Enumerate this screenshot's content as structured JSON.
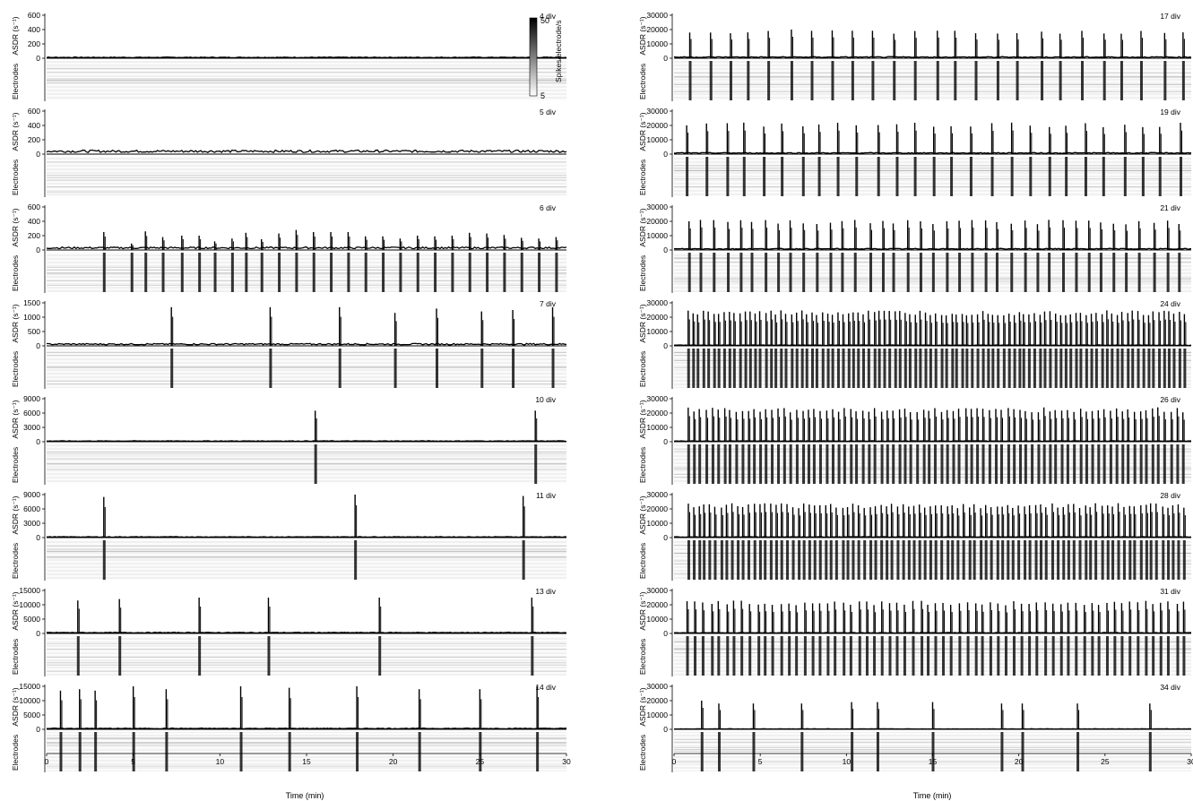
{
  "chart_data": {
    "type": "line",
    "description_axis": {
      "x_label": "Time (min)",
      "x_ticks": [
        "0",
        "5",
        "10",
        "15",
        "20",
        "25",
        "30"
      ],
      "x_range": [
        0,
        30
      ]
    },
    "colorbar": {
      "label": "Spikes/electrode/s",
      "max_label": "50",
      "min_label": "5"
    },
    "y_label_top": "ASDR (s⁻¹)",
    "y_label_bottom": "Electrodes",
    "panels": [
      {
        "label": "4 div",
        "column": "left",
        "ymax": 600,
        "ticks": [
          "600",
          "400",
          "200",
          "0"
        ],
        "baseline": 12,
        "bursts": []
      },
      {
        "label": "5 div",
        "column": "left",
        "ymax": 600,
        "ticks": [
          "600",
          "400",
          "200",
          "0"
        ],
        "baseline": 40,
        "bursts": []
      },
      {
        "label": "6 div",
        "column": "left",
        "ymax": 600,
        "ticks": [
          "600",
          "400",
          "200",
          "0"
        ],
        "baseline": 30,
        "bursts": [
          {
            "t": 3.3,
            "v": 250
          },
          {
            "t": 4.9,
            "v": 90
          },
          {
            "t": 5.7,
            "v": 260
          },
          {
            "t": 6.7,
            "v": 180
          },
          {
            "t": 7.8,
            "v": 200
          },
          {
            "t": 8.8,
            "v": 200
          },
          {
            "t": 9.7,
            "v": 120
          },
          {
            "t": 10.7,
            "v": 160
          },
          {
            "t": 11.5,
            "v": 240
          },
          {
            "t": 12.4,
            "v": 150
          },
          {
            "t": 13.4,
            "v": 230
          },
          {
            "t": 14.4,
            "v": 280
          },
          {
            "t": 15.4,
            "v": 250
          },
          {
            "t": 16.4,
            "v": 250
          },
          {
            "t": 17.4,
            "v": 250
          },
          {
            "t": 18.4,
            "v": 190
          },
          {
            "t": 19.4,
            "v": 190
          },
          {
            "t": 20.4,
            "v": 160
          },
          {
            "t": 21.4,
            "v": 200
          },
          {
            "t": 22.4,
            "v": 190
          },
          {
            "t": 23.4,
            "v": 200
          },
          {
            "t": 24.4,
            "v": 240
          },
          {
            "t": 25.4,
            "v": 230
          },
          {
            "t": 26.4,
            "v": 210
          },
          {
            "t": 27.4,
            "v": 170
          },
          {
            "t": 28.4,
            "v": 160
          },
          {
            "t": 29.4,
            "v": 180
          }
        ]
      },
      {
        "label": "7 div",
        "column": "left",
        "ymax": 1500,
        "ticks": [
          "1500",
          "1000",
          "500",
          "0"
        ],
        "baseline": 60,
        "bursts": [
          {
            "t": 7.2,
            "v": 1350
          },
          {
            "t": 12.9,
            "v": 1350
          },
          {
            "t": 16.9,
            "v": 1350
          },
          {
            "t": 20.1,
            "v": 1150
          },
          {
            "t": 22.5,
            "v": 1300
          },
          {
            "t": 25.1,
            "v": 1200
          },
          {
            "t": 26.9,
            "v": 1250
          },
          {
            "t": 29.2,
            "v": 1350
          }
        ]
      },
      {
        "label": "10 div",
        "column": "left",
        "ymax": 9000,
        "ticks": [
          "9000",
          "6000",
          "3000",
          "0"
        ],
        "baseline": 150,
        "bursts": [
          {
            "t": 15.5,
            "v": 6500
          },
          {
            "t": 28.2,
            "v": 6500
          }
        ]
      },
      {
        "label": "11 div",
        "column": "left",
        "ymax": 9000,
        "ticks": [
          "9000",
          "6000",
          "3000",
          "0"
        ],
        "baseline": 150,
        "bursts": [
          {
            "t": 3.3,
            "v": 8500
          },
          {
            "t": 17.8,
            "v": 9000
          },
          {
            "t": 27.5,
            "v": 8700
          }
        ]
      },
      {
        "label": "13 div",
        "column": "left",
        "ymax": 15000,
        "ticks": [
          "15000",
          "10000",
          "5000",
          "0"
        ],
        "baseline": 300,
        "bursts": [
          {
            "t": 1.8,
            "v": 11500
          },
          {
            "t": 4.2,
            "v": 12000
          },
          {
            "t": 8.8,
            "v": 12500
          },
          {
            "t": 12.8,
            "v": 12500
          },
          {
            "t": 19.2,
            "v": 12500
          },
          {
            "t": 28.0,
            "v": 12500
          }
        ]
      },
      {
        "label": "14 div",
        "column": "left",
        "ymax": 15000,
        "ticks": [
          "15000",
          "10000",
          "5000",
          "0"
        ],
        "baseline": 300,
        "bursts": [
          {
            "t": 0.8,
            "v": 13500
          },
          {
            "t": 1.9,
            "v": 14000
          },
          {
            "t": 2.8,
            "v": 13500
          },
          {
            "t": 5.0,
            "v": 15000
          },
          {
            "t": 6.9,
            "v": 14000
          },
          {
            "t": 11.2,
            "v": 15000
          },
          {
            "t": 14.0,
            "v": 14500
          },
          {
            "t": 17.9,
            "v": 15000
          },
          {
            "t": 21.5,
            "v": 14000
          },
          {
            "t": 25.0,
            "v": 14000
          },
          {
            "t": 28.3,
            "v": 15000
          }
        ]
      },
      {
        "label": "17 div",
        "column": "right",
        "ymax": 30000,
        "ticks": [
          "30000",
          "20000",
          "10000",
          "0"
        ],
        "baseline": 800,
        "burst_period_min": 1.2,
        "burst_value": 20000
      },
      {
        "label": "19 div",
        "column": "right",
        "ymax": 30000,
        "ticks": [
          "30000",
          "20000",
          "10000",
          "0"
        ],
        "baseline": 800,
        "burst_period_min": 1.1,
        "burst_value": 22000
      },
      {
        "label": "21 div",
        "column": "right",
        "ymax": 30000,
        "ticks": [
          "30000",
          "20000",
          "10000",
          "0"
        ],
        "baseline": 800,
        "burst_period_min": 0.75,
        "burst_value": 21000
      },
      {
        "label": "24 div",
        "column": "right",
        "ymax": 30000,
        "ticks": [
          "30000",
          "20000",
          "10000",
          "0"
        ],
        "baseline": 500,
        "burst_period_min": 0.3,
        "burst_value": 25000
      },
      {
        "label": "26 div",
        "column": "right",
        "ymax": 30000,
        "ticks": [
          "30000",
          "20000",
          "10000",
          "0"
        ],
        "baseline": 500,
        "burst_period_min": 0.35,
        "burst_value": 24000
      },
      {
        "label": "28 div",
        "column": "right",
        "ymax": 30000,
        "ticks": [
          "30000",
          "20000",
          "10000",
          "0"
        ],
        "baseline": 500,
        "burst_period_min": 0.32,
        "burst_value": 24000
      },
      {
        "label": "31 div",
        "column": "right",
        "ymax": 30000,
        "ticks": [
          "30000",
          "20000",
          "10000",
          "0"
        ],
        "baseline": 500,
        "burst_period_min": 0.45,
        "burst_value": 23000
      },
      {
        "label": "34 div",
        "column": "right",
        "ymax": 30000,
        "ticks": [
          "30000",
          "20000",
          "10000",
          "0"
        ],
        "baseline": 300,
        "bursts": [
          {
            "t": 1.6,
            "v": 20000
          },
          {
            "t": 2.6,
            "v": 18000
          },
          {
            "t": 4.6,
            "v": 18000
          },
          {
            "t": 7.4,
            "v": 18000
          },
          {
            "t": 10.3,
            "v": 19000
          },
          {
            "t": 11.8,
            "v": 19000
          },
          {
            "t": 15.0,
            "v": 19000
          },
          {
            "t": 19.0,
            "v": 18000
          },
          {
            "t": 20.2,
            "v": 18000
          },
          {
            "t": 23.4,
            "v": 18000
          },
          {
            "t": 27.6,
            "v": 18000
          }
        ]
      }
    ]
  }
}
